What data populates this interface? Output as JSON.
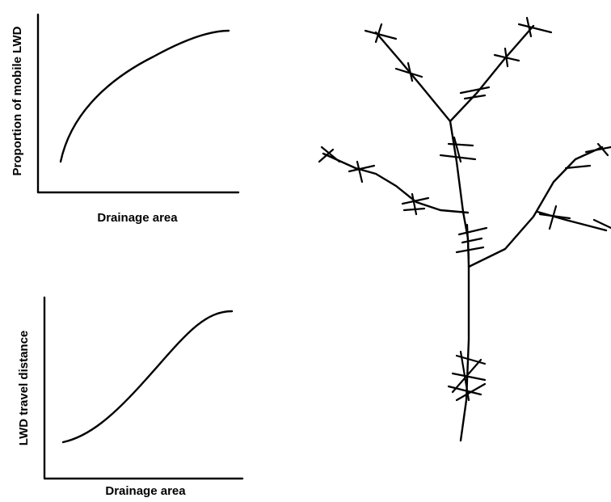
{
  "plots": [
    {
      "y_label": "Proportion of mobile LWD",
      "x_label": "Drainage area"
    },
    {
      "y_label": "LWD travel distance",
      "x_label": "Drainage area"
    }
  ]
}
